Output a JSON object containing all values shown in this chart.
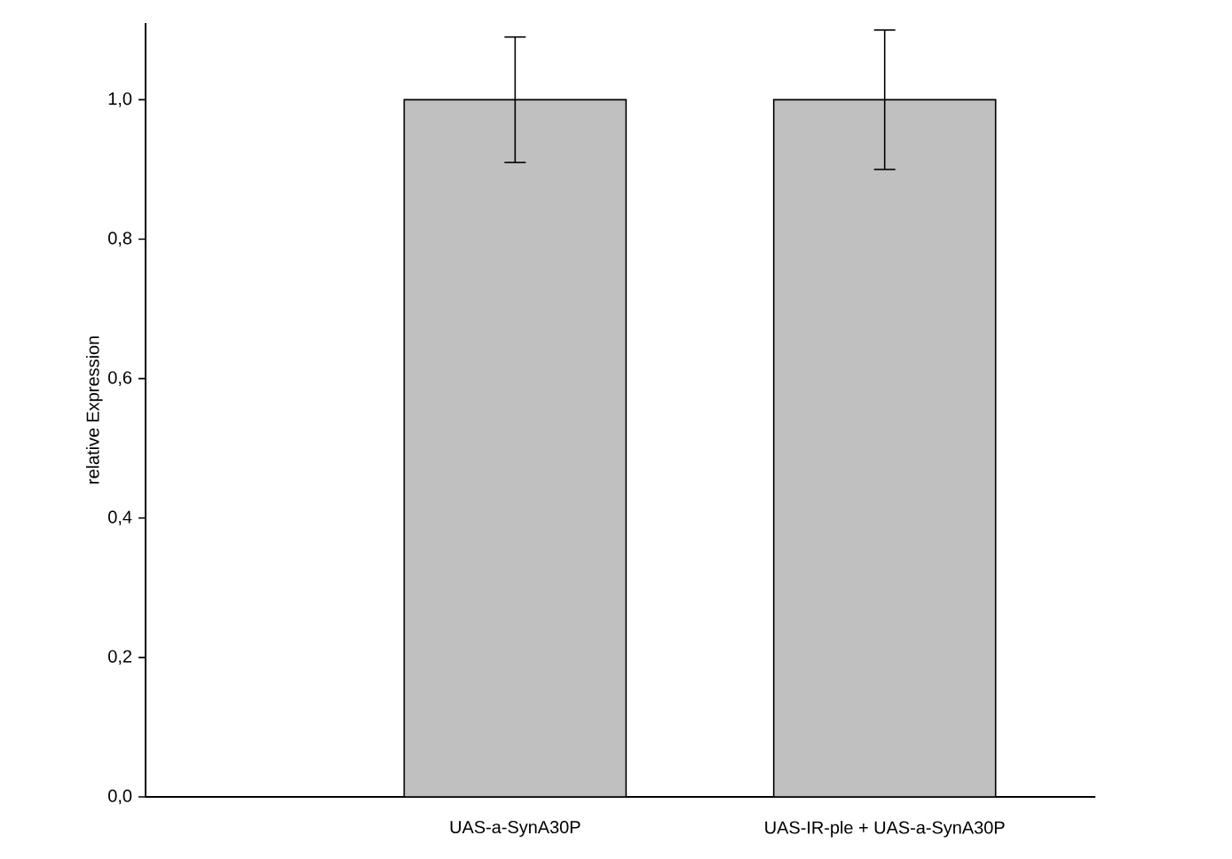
{
  "chart_data": {
    "type": "bar",
    "ylabel": "relative Expression",
    "categories": [
      "UAS-a-SynA30P",
      "UAS-IR-ple + UAS-a-SynA30P"
    ],
    "values": [
      1.0,
      1.0
    ],
    "errors": [
      [
        0.91,
        1.09
      ],
      [
        0.9,
        1.1
      ]
    ],
    "color": "#c0c0c0",
    "ylim": [
      0,
      1.11
    ],
    "yticks": [
      {
        "value": 0,
        "label": "0,0"
      },
      {
        "value": 0.2,
        "label": "0,2"
      },
      {
        "value": 0.4,
        "label": "0,4"
      },
      {
        "value": 0.6,
        "label": "0,6"
      },
      {
        "value": 0.8,
        "label": "0,8"
      },
      {
        "value": 1.0,
        "label": "1,0"
      }
    ],
    "grid": false
  }
}
